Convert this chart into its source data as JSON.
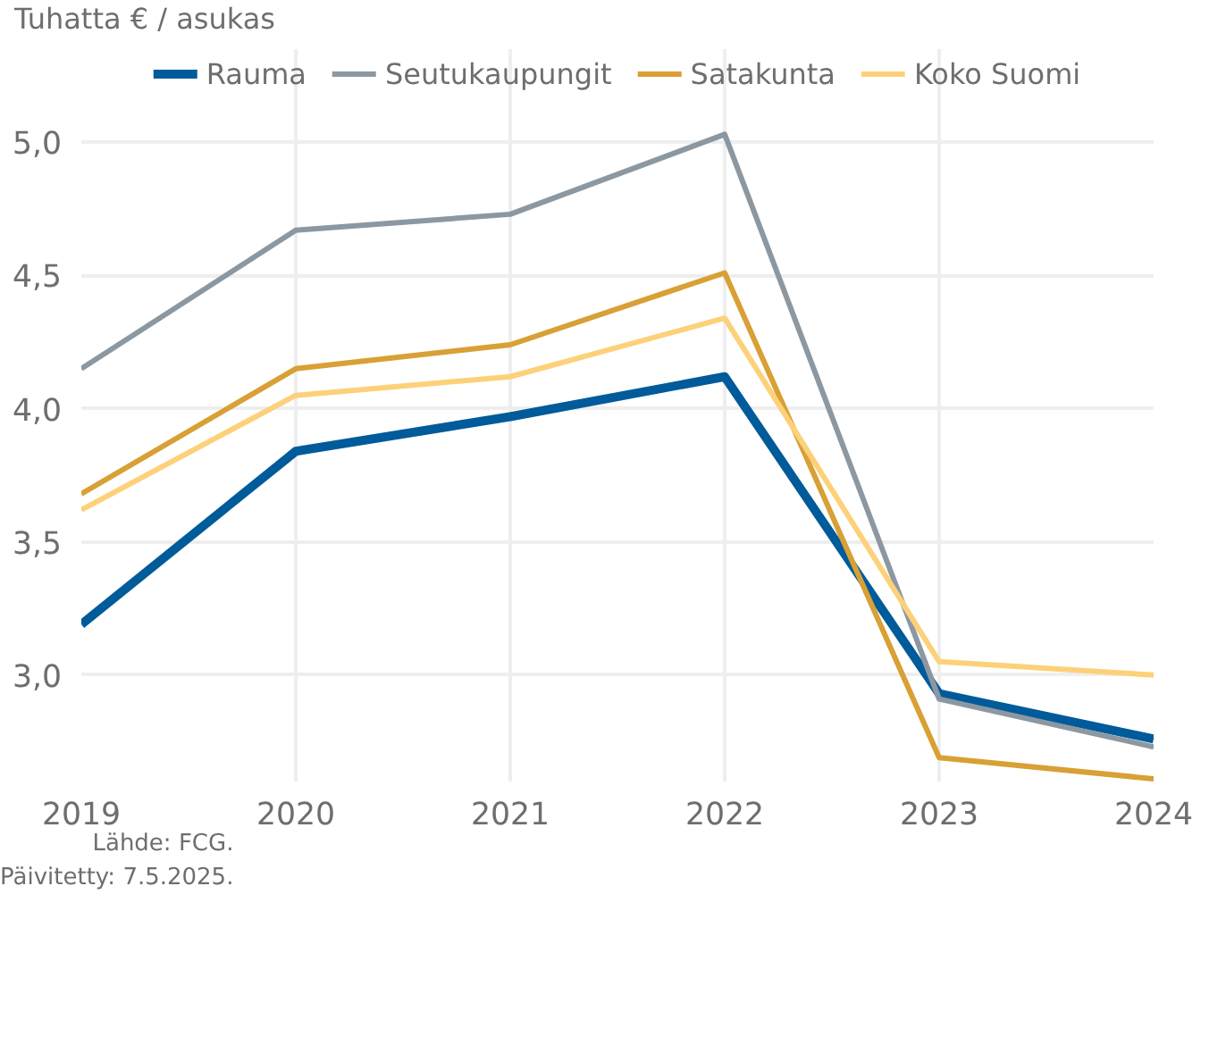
{
  "chart_data": {
    "type": "line",
    "ylabel": "Tuhatta € / asukas",
    "x": [
      2019,
      2020,
      2021,
      2022,
      2023,
      2024
    ],
    "series": [
      {
        "name": "Rauma",
        "color": "#005b9a",
        "values": [
          3.19,
          3.84,
          3.97,
          4.12,
          2.93,
          2.76
        ]
      },
      {
        "name": "Seutukaupungit",
        "color": "#8c98a1",
        "values": [
          4.15,
          4.67,
          4.73,
          5.03,
          2.91,
          2.73
        ]
      },
      {
        "name": "Satakunta",
        "color": "#d8a035",
        "values": [
          3.68,
          4.15,
          4.24,
          4.51,
          2.69,
          2.61
        ]
      },
      {
        "name": "Koko Suomi",
        "color": "#fdd17a",
        "values": [
          3.62,
          4.05,
          4.12,
          4.34,
          3.05,
          3.0
        ]
      }
    ],
    "xlim": [
      2019,
      2024
    ],
    "xticks": [
      2019,
      2020,
      2021,
      2022,
      2023,
      2024
    ],
    "ylim": [
      2.6,
      5.35
    ],
    "yticks": [
      {
        "value": 3.0,
        "label": "3,0"
      },
      {
        "value": 3.5,
        "label": "3,5"
      },
      {
        "value": 4.0,
        "label": "4,0"
      },
      {
        "value": 4.5,
        "label": "4,5"
      },
      {
        "value": 5.0,
        "label": "5,0"
      }
    ],
    "grid": true,
    "legend": "top",
    "marker": "none",
    "line_style": "solid",
    "annotations": [
      "Lähde: FCG.",
      "Päivitetty: 7.5.2025."
    ]
  }
}
